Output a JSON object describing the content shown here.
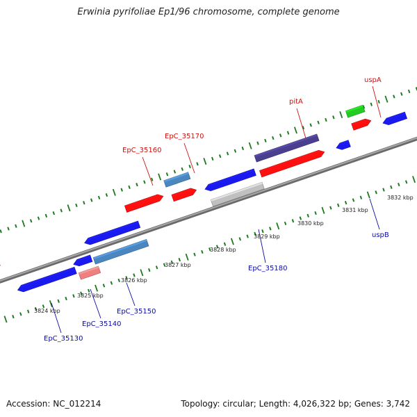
{
  "title": "Erwinia pyrifoliae Ep1/96 chromosome, complete genome",
  "footer": {
    "accession": "Accession: NC_012214",
    "stats": "Topology: circular; Length: 4,026,322 bp; Genes: 3,742"
  },
  "colors": {
    "backbone": "#8a8a8a",
    "forward_ticks": "#1e7a1e",
    "reverse_ticks": "#1e7a1e",
    "label_forward": "#cc1111",
    "label_reverse": "#0a0aa0",
    "red": "#ff1010",
    "blue": "#1a1af0",
    "steel": "#4a86c0",
    "purple": "#4a3f8f",
    "green": "#22cc22",
    "gray": "#c0c0c0",
    "pink": "#f08080"
  },
  "scale": {
    "unit": "kbp",
    "ticks": [
      "3824 kbp",
      "3825 kbp",
      "3826 kbp",
      "3827 kbp",
      "3828 kbp",
      "3829 kbp",
      "3830 kbp",
      "3831 kbp",
      "3832 kbp"
    ]
  },
  "genes": [
    {
      "label": "EpC_35130",
      "strand": "reverse"
    },
    {
      "label": "EpC_35140",
      "strand": "reverse"
    },
    {
      "label": "EpC_35150",
      "strand": "reverse"
    },
    {
      "label": "EpC_35160",
      "strand": "forward"
    },
    {
      "label": "EpC_35170",
      "strand": "forward"
    },
    {
      "label": "EpC_35180",
      "strand": "reverse"
    },
    {
      "label": "pitA",
      "strand": "forward"
    },
    {
      "label": "uspA",
      "strand": "forward"
    },
    {
      "label": "uspB",
      "strand": "reverse"
    }
  ]
}
